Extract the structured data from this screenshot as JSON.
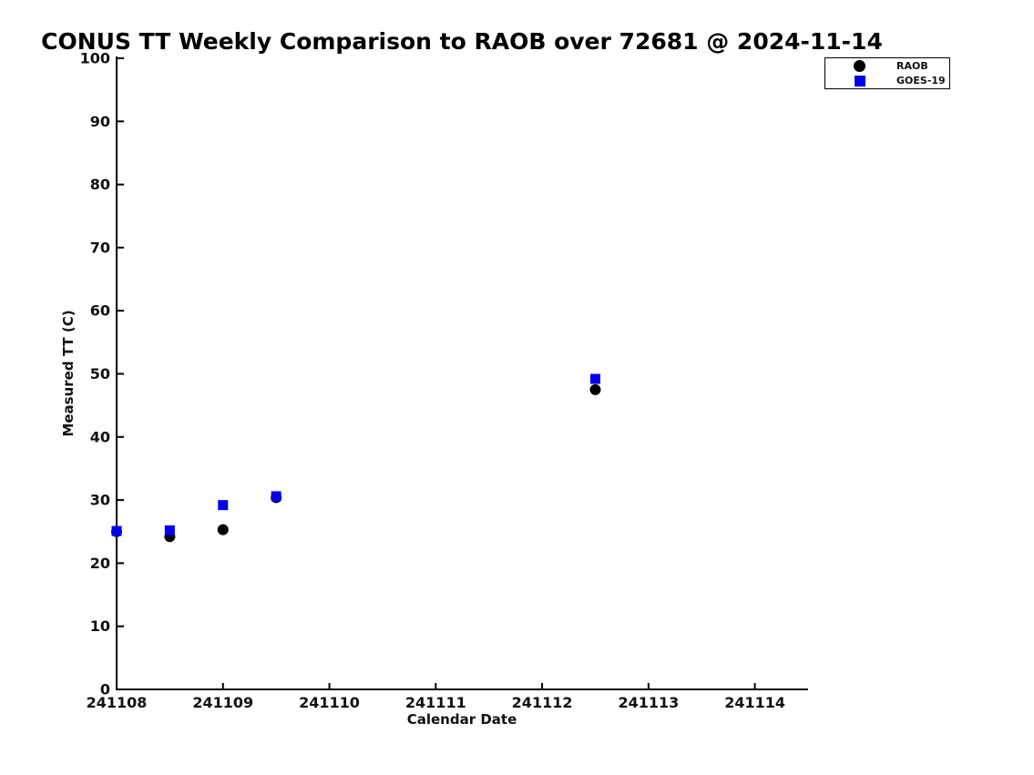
{
  "chart_data": {
    "type": "scatter",
    "title": "CONUS TT Weekly Comparison to RAOB over 72681 @ 2024-11-14",
    "xlabel": "Calendar Date",
    "ylabel": "Measured TT (C)",
    "xlim": [
      241108,
      241114.5
    ],
    "ylim": [
      0,
      100
    ],
    "xticks": [
      241108,
      241109,
      241110,
      241111,
      241112,
      241113,
      241114
    ],
    "yticks": [
      0,
      10,
      20,
      30,
      40,
      50,
      60,
      70,
      80,
      90,
      100
    ],
    "grid": false,
    "legend_position": "top-right",
    "axis_color": "#000000",
    "series": [
      {
        "name": "RAOB",
        "marker": "circle",
        "color": "#000000",
        "x": [
          241108.0,
          241108.5,
          241109.0,
          241109.5,
          241112.5
        ],
        "y": [
          25.0,
          24.2,
          25.3,
          30.4,
          47.5
        ]
      },
      {
        "name": "GOES-19",
        "marker": "square",
        "color": "#0000ee",
        "x": [
          241108.0,
          241108.5,
          241109.0,
          241109.5,
          241112.5
        ],
        "y": [
          25.1,
          25.2,
          29.2,
          30.6,
          49.2
        ]
      }
    ]
  }
}
